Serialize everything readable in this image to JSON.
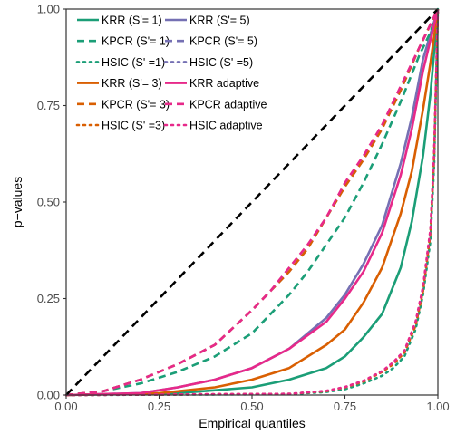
{
  "chart_data": {
    "type": "line",
    "title": "",
    "xlabel": "Empirical quantiles",
    "ylabel": "p−values",
    "xlim": [
      0,
      1
    ],
    "ylim": [
      0,
      1
    ],
    "xticks": [
      "0.00",
      "0.25",
      "0.50",
      "0.75",
      "1.00"
    ],
    "yticks": [
      "0.00",
      "0.25",
      "0.50",
      "0.75",
      "1.00"
    ],
    "grid": false,
    "legend_position": "top-left inside",
    "reference_line": {
      "x": [
        0,
        1
      ],
      "y": [
        0,
        1
      ],
      "style": "dashed",
      "color": "#000000"
    },
    "series": [
      {
        "name": "KRR (S'= 1)",
        "color": "#1b9e77",
        "dash": "solid",
        "x": [
          0,
          0.3,
          0.5,
          0.6,
          0.7,
          0.75,
          0.8,
          0.85,
          0.9,
          0.93,
          0.96,
          0.98,
          1.0
        ],
        "y": [
          0,
          0.005,
          0.02,
          0.04,
          0.07,
          0.1,
          0.15,
          0.21,
          0.33,
          0.45,
          0.62,
          0.78,
          1.0
        ]
      },
      {
        "name": "KRR (S'= 5)",
        "color": "#7570b3",
        "dash": "solid",
        "x": [
          0,
          0.2,
          0.3,
          0.4,
          0.5,
          0.6,
          0.7,
          0.75,
          0.8,
          0.85,
          0.9,
          0.93,
          0.96,
          1.0
        ],
        "y": [
          0,
          0.005,
          0.02,
          0.04,
          0.07,
          0.12,
          0.2,
          0.26,
          0.34,
          0.44,
          0.6,
          0.72,
          0.87,
          1.0
        ]
      },
      {
        "name": "KPCR (S'= 1)",
        "color": "#1b9e77",
        "dash": "dashed",
        "x": [
          0,
          0.1,
          0.2,
          0.3,
          0.4,
          0.5,
          0.6,
          0.65,
          0.7,
          0.75,
          0.8,
          0.85,
          0.9,
          0.95,
          0.98,
          1.0
        ],
        "y": [
          0,
          0.01,
          0.03,
          0.06,
          0.1,
          0.16,
          0.26,
          0.32,
          0.39,
          0.46,
          0.55,
          0.65,
          0.76,
          0.88,
          0.94,
          1.0
        ]
      },
      {
        "name": "KPCR (S'= 5)",
        "color": "#7570b3",
        "dash": "dashed",
        "x": [
          0,
          0.1,
          0.2,
          0.3,
          0.4,
          0.5,
          0.55,
          0.6,
          0.65,
          0.7,
          0.75,
          0.8,
          0.85,
          0.9,
          0.95,
          0.98,
          1.0
        ],
        "y": [
          0,
          0.01,
          0.04,
          0.08,
          0.13,
          0.22,
          0.27,
          0.32,
          0.38,
          0.46,
          0.54,
          0.61,
          0.69,
          0.79,
          0.9,
          0.96,
          1.0
        ]
      },
      {
        "name": "HSIC (S' =1)",
        "color": "#1b9e77",
        "dash": "dotted",
        "x": [
          0,
          0.6,
          0.7,
          0.75,
          0.8,
          0.85,
          0.88,
          0.91,
          0.94,
          0.96,
          0.98,
          0.99,
          1.0
        ],
        "y": [
          0,
          0.002,
          0.008,
          0.015,
          0.03,
          0.05,
          0.07,
          0.1,
          0.17,
          0.26,
          0.4,
          0.6,
          1.0
        ]
      },
      {
        "name": "HSIC (S' =5)",
        "color": "#7570b3",
        "dash": "dotted",
        "x": [
          0,
          0.6,
          0.7,
          0.75,
          0.8,
          0.85,
          0.88,
          0.91,
          0.94,
          0.96,
          0.98,
          0.99,
          1.0
        ],
        "y": [
          0,
          0.003,
          0.01,
          0.02,
          0.035,
          0.06,
          0.08,
          0.11,
          0.18,
          0.27,
          0.42,
          0.62,
          1.0
        ]
      },
      {
        "name": "KRR (S'= 3)",
        "color": "#d95f02",
        "dash": "solid",
        "x": [
          0,
          0.25,
          0.4,
          0.5,
          0.6,
          0.7,
          0.75,
          0.8,
          0.85,
          0.9,
          0.93,
          0.96,
          0.98,
          1.0
        ],
        "y": [
          0,
          0.005,
          0.02,
          0.04,
          0.07,
          0.13,
          0.17,
          0.24,
          0.33,
          0.47,
          0.58,
          0.74,
          0.86,
          1.0
        ]
      },
      {
        "name": "KRR adaptive",
        "color": "#e7298a",
        "dash": "solid",
        "x": [
          0,
          0.2,
          0.3,
          0.4,
          0.5,
          0.6,
          0.7,
          0.75,
          0.8,
          0.85,
          0.9,
          0.93,
          0.96,
          1.0
        ],
        "y": [
          0,
          0.005,
          0.02,
          0.04,
          0.07,
          0.12,
          0.19,
          0.25,
          0.32,
          0.42,
          0.57,
          0.69,
          0.84,
          1.0
        ]
      },
      {
        "name": "KPCR (S'= 3)",
        "color": "#d95f02",
        "dash": "dashed",
        "x": [
          0,
          0.1,
          0.2,
          0.3,
          0.4,
          0.5,
          0.55,
          0.6,
          0.65,
          0.7,
          0.75,
          0.8,
          0.85,
          0.9,
          0.95,
          0.98,
          1.0
        ],
        "y": [
          0,
          0.01,
          0.04,
          0.08,
          0.13,
          0.22,
          0.27,
          0.32,
          0.38,
          0.46,
          0.54,
          0.61,
          0.69,
          0.79,
          0.9,
          0.96,
          1.0
        ]
      },
      {
        "name": "KPCR adaptive",
        "color": "#e7298a",
        "dash": "dashed",
        "x": [
          0,
          0.1,
          0.2,
          0.3,
          0.4,
          0.5,
          0.55,
          0.6,
          0.65,
          0.7,
          0.75,
          0.8,
          0.85,
          0.9,
          0.95,
          0.98,
          1.0
        ],
        "y": [
          0,
          0.01,
          0.04,
          0.08,
          0.13,
          0.22,
          0.27,
          0.33,
          0.39,
          0.46,
          0.55,
          0.62,
          0.7,
          0.8,
          0.9,
          0.96,
          1.0
        ]
      },
      {
        "name": "HSIC (S' =3)",
        "color": "#d95f02",
        "dash": "dotted",
        "x": [
          0,
          0.6,
          0.7,
          0.75,
          0.8,
          0.85,
          0.88,
          0.91,
          0.94,
          0.96,
          0.98,
          0.99,
          1.0
        ],
        "y": [
          0,
          0.003,
          0.01,
          0.02,
          0.035,
          0.06,
          0.08,
          0.11,
          0.18,
          0.27,
          0.42,
          0.62,
          1.0
        ]
      },
      {
        "name": "HSIC adaptive",
        "color": "#e7298a",
        "dash": "dotted",
        "x": [
          0,
          0.6,
          0.7,
          0.75,
          0.8,
          0.85,
          0.88,
          0.91,
          0.94,
          0.96,
          0.98,
          0.99,
          1.0
        ],
        "y": [
          0,
          0.003,
          0.011,
          0.021,
          0.037,
          0.062,
          0.085,
          0.115,
          0.19,
          0.28,
          0.43,
          0.63,
          1.0
        ]
      }
    ]
  }
}
